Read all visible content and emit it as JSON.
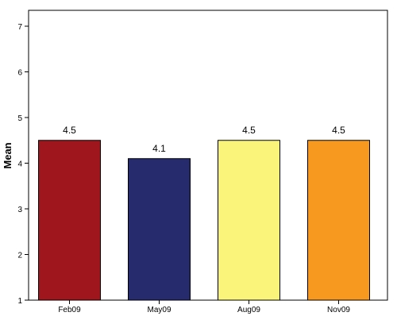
{
  "chart_data": {
    "type": "bar",
    "title": "",
    "xlabel": "",
    "ylabel": "Mean",
    "ylim": [
      1,
      7
    ],
    "yticks": [
      1,
      2,
      3,
      4,
      5,
      6,
      7
    ],
    "grid": false,
    "categories": [
      "Feb09",
      "May09",
      "Aug09",
      "Nov09"
    ],
    "values": [
      4.5,
      4.1,
      4.5,
      4.5
    ],
    "data_labels": [
      "4.5",
      "4.1",
      "4.5",
      "4.5"
    ],
    "colors": [
      "#a0161d",
      "#262b6e",
      "#faf57a",
      "#f7981f"
    ]
  }
}
